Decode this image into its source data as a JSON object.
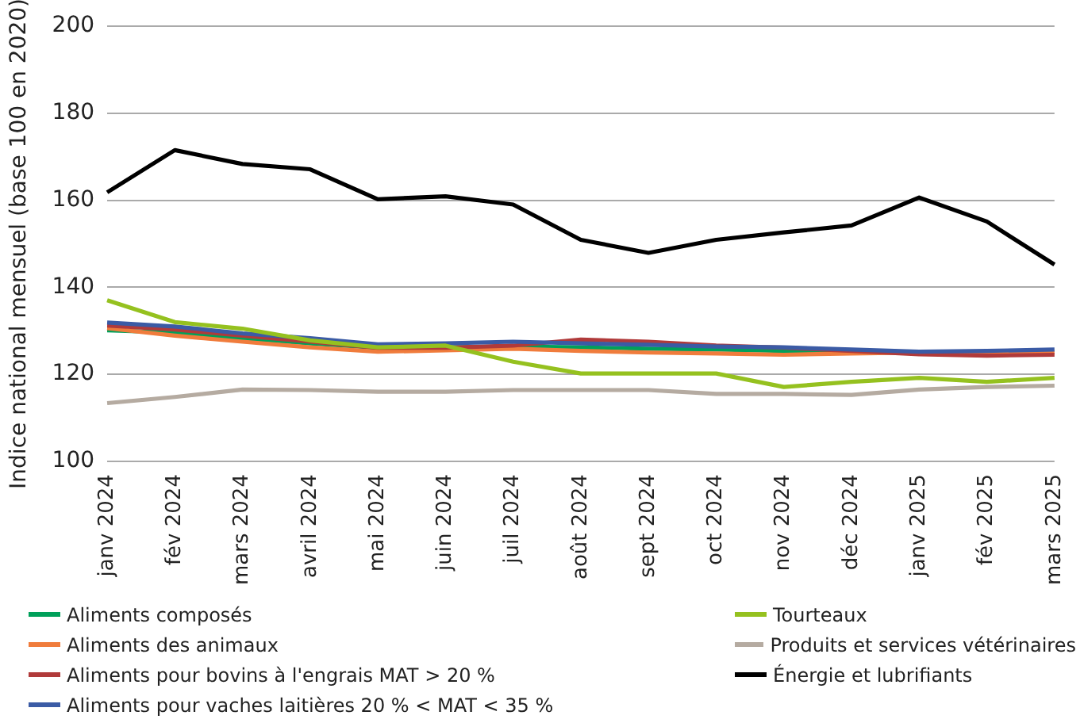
{
  "chart_data": {
    "type": "line",
    "ylabel": "Indice national mensuel (base 100 en 2020)",
    "categories": [
      "janv 2024",
      "fév 2024",
      "mars 2024",
      "avril 2024",
      "mai 2024",
      "juin 2024",
      "juil 2024",
      "août 2024",
      "sept 2024",
      "oct 2024",
      "nov 2024",
      "déc 2024",
      "janv 2025",
      "fév 2025",
      "mars 2025"
    ],
    "series": [
      {
        "name": "Aliments composés",
        "color": "#00a05a",
        "values": [
          130.1,
          129.6,
          128.3,
          127.1,
          126.1,
          126.2,
          126.4,
          126.2,
          125.9,
          125.7,
          125.4,
          125.2,
          125,
          null,
          null
        ]
      },
      {
        "name": "Aliments des animaux",
        "color": "#f07c3c",
        "values": [
          130.6,
          128.9,
          127.5,
          126.2,
          125.2,
          125.5,
          125.9,
          125.4,
          125,
          124.8,
          124.5,
          124.8,
          125,
          125,
          125
        ]
      },
      {
        "name": "Aliments pour bovins à l'engrais MAT > 20 %",
        "color": "#b03a3a",
        "values": [
          131.2,
          130.3,
          128.9,
          127.5,
          126.1,
          126.1,
          126.6,
          128,
          127.5,
          126.6,
          126.1,
          125.4,
          124.6,
          124.3,
          124.5
        ]
      },
      {
        "name": "Aliments pour vaches laitières 20 % < MAT < 35 %",
        "color": "#3b5ba5",
        "values": [
          131.9,
          131,
          129.4,
          128.3,
          126.9,
          127.1,
          127.5,
          127.1,
          126.8,
          126.4,
          126.2,
          125.7,
          125.2,
          125.4,
          125.7
        ]
      },
      {
        "name": "Tourteaux",
        "color": "#95c11f",
        "values": [
          137,
          132,
          130.5,
          127.8,
          126.2,
          126.6,
          122.9,
          120.2,
          120.2,
          120.2,
          117.1,
          118.3,
          119.2,
          118.3,
          119.2
        ]
      },
      {
        "name": "Produits et services vétérinaires",
        "color": "#b5aba1",
        "values": [
          113.4,
          114.8,
          116.5,
          116.4,
          116,
          116,
          116.4,
          116.4,
          116.4,
          115.5,
          115.5,
          115.3,
          116.5,
          117.1,
          117.4
        ]
      },
      {
        "name": "Énergie et lubrifiants",
        "color": "#000000",
        "values": [
          161.8,
          171.5,
          168.3,
          167.1,
          160.2,
          160.9,
          159,
          150.9,
          147.9,
          150.9,
          152.6,
          154.2,
          160.6,
          155.1,
          145.2
        ]
      }
    ],
    "ylim": [
      100,
      200
    ],
    "yticks": [
      100,
      120,
      140,
      160,
      180,
      200
    ],
    "grid": "y",
    "legend": "bottom",
    "marker": "none",
    "line_style": "solid"
  }
}
